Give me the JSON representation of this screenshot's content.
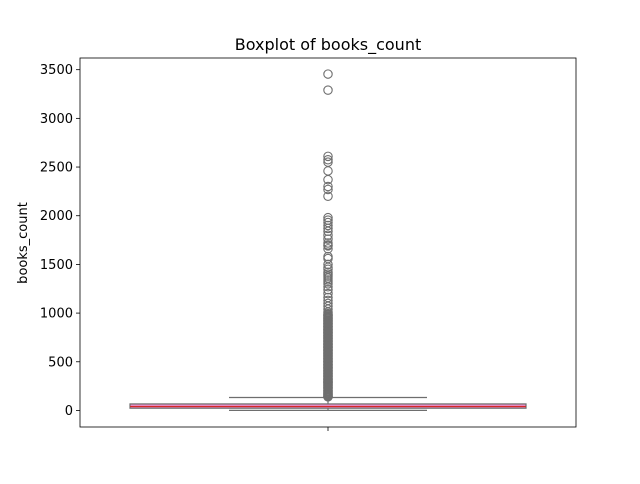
{
  "chart_data": {
    "type": "box",
    "title": "Boxplot of books_count",
    "xlabel": "",
    "ylabel": "books_count",
    "ylim": [
      -170,
      3620
    ],
    "yticks": [
      0,
      500,
      1000,
      1500,
      2000,
      2500,
      3000,
      3500
    ],
    "grid": false,
    "series": [
      {
        "box": {
          "whisker_low": 1,
          "q1": 23,
          "median": 40,
          "q3": 67,
          "whisker_high": 133
        },
        "outliers": [
          3455,
          3290,
          2610,
          2575,
          2550,
          2460,
          2370,
          2300,
          2270,
          2200,
          1980,
          1955,
          1930,
          1900,
          1870,
          1840,
          1800,
          1760,
          1720,
          1700,
          1690,
          1660,
          1580,
          1560,
          1500,
          1470,
          1450,
          1420,
          1400,
          1380,
          1360,
          1340,
          1320,
          1300,
          1270,
          1240,
          1200,
          1160,
          1130,
          1100,
          1070,
          1040,
          1010,
          980,
          950,
          920,
          890,
          860,
          830,
          800,
          770,
          740,
          710,
          680,
          650,
          620,
          590,
          560,
          530,
          500,
          470,
          440,
          410,
          380,
          350,
          320,
          290,
          260,
          230,
          200,
          180,
          160,
          145,
          140
        ]
      }
    ],
    "colors": {
      "box_fill": "#e78ac3",
      "median": "#d62728",
      "edges": "#6e6e6e"
    }
  }
}
